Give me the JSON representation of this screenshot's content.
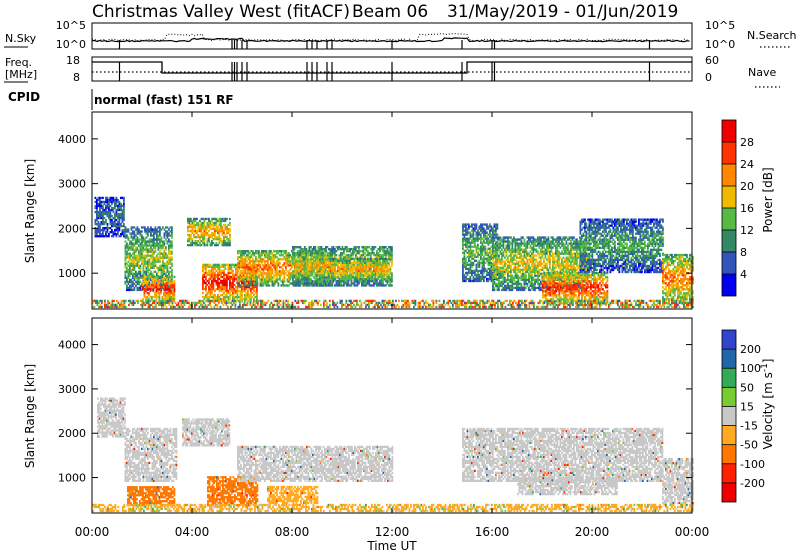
{
  "header": {
    "title": "Christmas Valley West (fitACF)",
    "beam_label": "Beam 06",
    "date_range": "31/May/2019 - 01/Jun/2019"
  },
  "aux_panel": {
    "left_label_top": "N.Sky",
    "left_tick_top": "10^5",
    "left_tick_bottom": "10^0",
    "right_tick_top": "10^5",
    "right_tick_bottom": "10^0",
    "right_label": "N.Search",
    "freq_label": "Freq.",
    "freq_unit": "[MHz]",
    "freq_tick_top": "18",
    "freq_tick_bottom": "8",
    "nave_tick_top": "60",
    "nave_tick_bottom": "0",
    "nave_label": "Nave",
    "cpid_label": "CPID",
    "cpid_text": "normal (fast) 151 RF"
  },
  "chart_data": [
    {
      "type": "heatmap",
      "name": "power",
      "ylabel": "Slant Range [km]",
      "yticks": [
        "1000",
        "2000",
        "3000",
        "4000"
      ],
      "ylim": [
        200,
        4600
      ],
      "colorbar_label": "Power [dB]",
      "colorbar_ticks": [
        "4",
        "8",
        "12",
        "16",
        "20",
        "24",
        "28"
      ],
      "colorbar_range": [
        0,
        32
      ],
      "colors": [
        "#0000ee",
        "#3355bb",
        "#338866",
        "#55bb44",
        "#eebb00",
        "#ff8800",
        "#ff3300",
        "#ee0000"
      ],
      "blobs": [
        {
          "t": [
            0.1,
            1.3
          ],
          "r": [
            1800,
            2700
          ],
          "p": 8
        },
        {
          "t": [
            1.3,
            3.2
          ],
          "r": [
            600,
            2000
          ],
          "p": 16
        },
        {
          "t": [
            2.0,
            3.3
          ],
          "r": [
            350,
            900
          ],
          "p": 28
        },
        {
          "t": [
            3.8,
            5.5
          ],
          "r": [
            1600,
            2200
          ],
          "p": 22
        },
        {
          "t": [
            4.4,
            6.6
          ],
          "r": [
            350,
            1200
          ],
          "p": 30
        },
        {
          "t": [
            5.8,
            9.6
          ],
          "r": [
            700,
            1500
          ],
          "p": 24
        },
        {
          "t": [
            8.0,
            12.0
          ],
          "r": [
            700,
            1600
          ],
          "p": 18
        },
        {
          "t": [
            9.5,
            11.8
          ],
          "r": [
            800,
            1300
          ],
          "p": 22
        },
        {
          "t": [
            14.8,
            16.2
          ],
          "r": [
            800,
            2100
          ],
          "p": 14
        },
        {
          "t": [
            16.0,
            19.8
          ],
          "r": [
            600,
            1800
          ],
          "p": 18
        },
        {
          "t": [
            18.0,
            20.6
          ],
          "r": [
            300,
            1000
          ],
          "p": 28
        },
        {
          "t": [
            19.5,
            22.8
          ],
          "r": [
            1000,
            2200
          ],
          "p": 12
        },
        {
          "t": [
            22.8,
            24.0
          ],
          "r": [
            300,
            1400
          ],
          "p": 24
        }
      ]
    },
    {
      "type": "heatmap",
      "name": "velocity",
      "ylabel": "Slant Range [km]",
      "yticks": [
        "1000",
        "2000",
        "3000",
        "4000"
      ],
      "ylim": [
        200,
        4600
      ],
      "colorbar_label": "Velocity [m s^-1]",
      "colorbar_ticks": [
        "200",
        "100",
        "50",
        "15",
        "-15",
        "-50",
        "-100",
        "-200"
      ],
      "colorbar_range": [
        -250,
        250
      ],
      "colors": [
        "#3344cc",
        "#2266aa",
        "#33aa55",
        "#77cc33",
        "#c8c8c8",
        "#ffaa22",
        "#ff7700",
        "#ff2200",
        "#ee0000"
      ],
      "blobs": [
        {
          "t": [
            0.2,
            1.3
          ],
          "r": [
            1900,
            2800
          ],
          "v": 0
        },
        {
          "t": [
            1.3,
            3.4
          ],
          "r": [
            900,
            2100
          ],
          "v": 0
        },
        {
          "t": [
            1.4,
            3.3
          ],
          "r": [
            350,
            800
          ],
          "v": -60
        },
        {
          "t": [
            3.6,
            5.5
          ],
          "r": [
            1700,
            2300
          ],
          "v": 0
        },
        {
          "t": [
            4.6,
            6.6
          ],
          "r": [
            350,
            1000
          ],
          "v": -60
        },
        {
          "t": [
            5.8,
            12.0
          ],
          "r": [
            900,
            1700
          ],
          "v": 0
        },
        {
          "t": [
            7.0,
            9.0
          ],
          "r": [
            400,
            800
          ],
          "v": -40
        },
        {
          "t": [
            14.8,
            22.8
          ],
          "r": [
            900,
            2100
          ],
          "v": 0
        },
        {
          "t": [
            17.0,
            21.0
          ],
          "r": [
            600,
            1000
          ],
          "v": 0
        },
        {
          "t": [
            22.8,
            24.0
          ],
          "r": [
            400,
            1400
          ],
          "v": 0
        }
      ],
      "ground_scatter_color": "#ffaa22"
    }
  ],
  "x_axis": {
    "xlabel": "Time UT",
    "xlim": [
      0,
      24
    ],
    "ticks": [
      "00:00",
      "04:00",
      "08:00",
      "12:00",
      "16:00",
      "20:00",
      "00:00"
    ],
    "tick_values": [
      0,
      4,
      8,
      12,
      16,
      20,
      24
    ]
  }
}
